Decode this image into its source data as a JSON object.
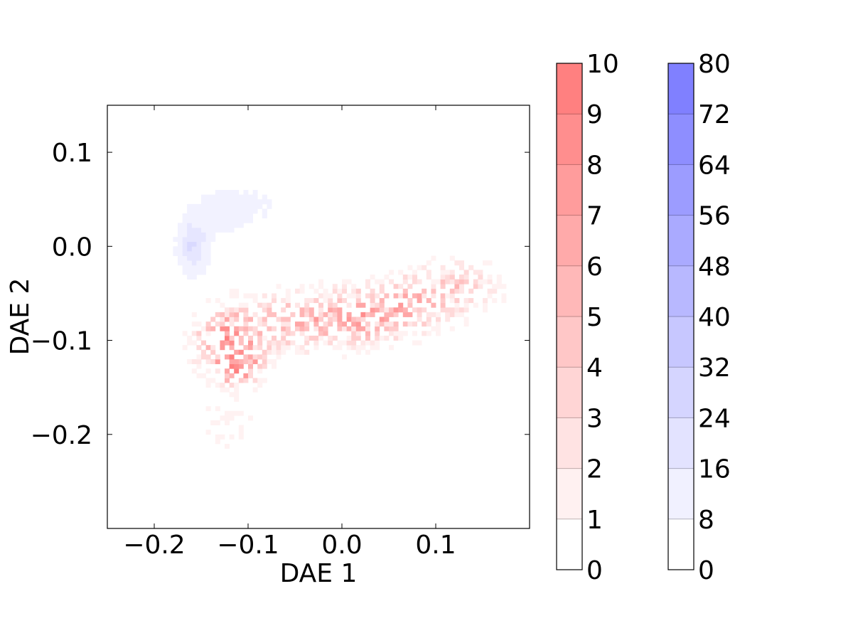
{
  "chart_data": {
    "type": "heatmap",
    "title": "",
    "xlabel": "DAE 1",
    "ylabel": "DAE 2",
    "xlim": [
      -0.25,
      0.2
    ],
    "ylim": [
      -0.3,
      0.15
    ],
    "xticks": [
      -0.2,
      -0.1,
      0.0,
      0.1
    ],
    "xtick_labels": [
      "−0.2",
      "−0.1",
      "0.0",
      "0.1"
    ],
    "yticks": [
      -0.2,
      -0.1,
      0.0,
      0.1
    ],
    "ytick_labels": [
      "−0.2",
      "−0.1",
      "0.0",
      "0.1"
    ],
    "grid": false,
    "series": [
      {
        "colormap": "blue",
        "color": "#8080ff",
        "colorbar_ticks": [
          "0",
          "8",
          "16",
          "24",
          "32",
          "40",
          "48",
          "56",
          "64",
          "72",
          "80"
        ],
        "colorbar_max": 80,
        "clusters": [
          {
            "x": -0.16,
            "y": 0.0,
            "sx": 0.012,
            "sy": 0.02,
            "peak": 20
          },
          {
            "x": -0.13,
            "y": 0.035,
            "sx": 0.03,
            "sy": 0.025,
            "peak": 10
          },
          {
            "x": -0.08,
            "y": 0.045,
            "sx": 0.035,
            "sy": 0.018,
            "peak": 6
          },
          {
            "x": -0.15,
            "y": -0.05,
            "sx": 0.025,
            "sy": 0.03,
            "peak": 4
          }
        ]
      },
      {
        "colormap": "red",
        "color": "#ff8080",
        "colorbar_ticks": [
          "0",
          "1",
          "2",
          "3",
          "4",
          "5",
          "6",
          "7",
          "8",
          "9",
          "10"
        ],
        "colorbar_max": 10,
        "clusters": [
          {
            "x": -0.12,
            "y": -0.1,
            "sx": 0.025,
            "sy": 0.025,
            "peak": 7
          },
          {
            "x": -0.11,
            "y": -0.13,
            "sx": 0.015,
            "sy": 0.01,
            "peak": 8
          },
          {
            "x": -0.05,
            "y": -0.08,
            "sx": 0.03,
            "sy": 0.02,
            "peak": 5
          },
          {
            "x": 0.02,
            "y": -0.075,
            "sx": 0.03,
            "sy": 0.02,
            "peak": 6
          },
          {
            "x": 0.08,
            "y": -0.06,
            "sx": 0.03,
            "sy": 0.02,
            "peak": 5
          },
          {
            "x": 0.13,
            "y": -0.04,
            "sx": 0.03,
            "sy": 0.018,
            "peak": 3
          },
          {
            "x": -0.12,
            "y": -0.19,
            "sx": 0.025,
            "sy": 0.02,
            "peak": 1.5
          }
        ]
      }
    ]
  }
}
